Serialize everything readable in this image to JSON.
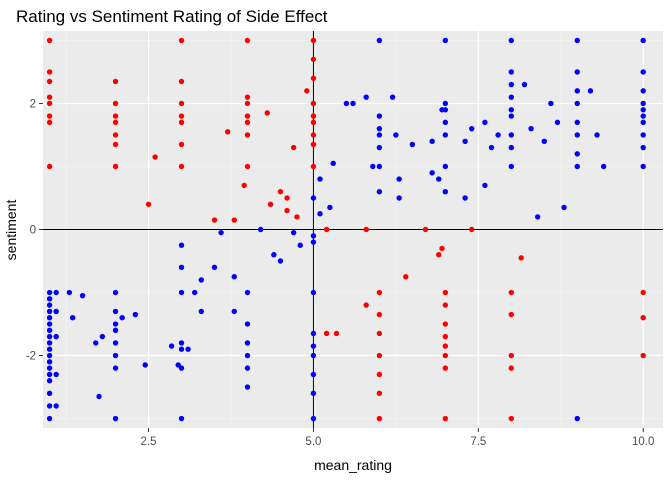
{
  "chart_data": {
    "type": "scatter",
    "title": "Rating vs Sentiment Rating of Side Effect",
    "xlabel": "mean_rating",
    "ylabel": "sentiment",
    "xlim": [
      0.9,
      10.3
    ],
    "ylim": [
      -3.15,
      3.15
    ],
    "x_ticks": [
      2.5,
      5.0,
      7.5,
      10.0
    ],
    "x_tick_labels": [
      "2.5",
      "5.0",
      "7.5",
      "10.0"
    ],
    "y_ticks": [
      -2,
      0,
      2
    ],
    "y_tick_labels": [
      "-2",
      "0",
      "2"
    ],
    "reference_lines": {
      "x": 5,
      "y": 0
    },
    "grid": true,
    "legend": "none",
    "colors": {
      "panel": "#ebebeb",
      "grid_major": "#ffffff",
      "grid_minor": "#f5f5f5",
      "reference_line": "#000000",
      "series_red": "#ff0000",
      "series_blue": "#0000ff"
    },
    "series": [
      {
        "color": "#ff0000",
        "points": [
          [
            1,
            3
          ],
          [
            1,
            2.5
          ],
          [
            1,
            2.35
          ],
          [
            1,
            2.1
          ],
          [
            1,
            2.0
          ],
          [
            1,
            1.8
          ],
          [
            1,
            1.7
          ],
          [
            1,
            1.0
          ],
          [
            2,
            2.35
          ],
          [
            2,
            2.0
          ],
          [
            2,
            1.8
          ],
          [
            2,
            1.7
          ],
          [
            2,
            1.5
          ],
          [
            2,
            1.35
          ],
          [
            2,
            1.0
          ],
          [
            2.6,
            1.15
          ],
          [
            2.5,
            0.4
          ],
          [
            3,
            3
          ],
          [
            3,
            2.35
          ],
          [
            3,
            2.0
          ],
          [
            3,
            1.8
          ],
          [
            3,
            1.7
          ],
          [
            3,
            1.35
          ],
          [
            3,
            1.0
          ],
          [
            3.5,
            0.15
          ],
          [
            3.7,
            1.55
          ],
          [
            3.8,
            0.15
          ],
          [
            3.95,
            0.7
          ],
          [
            4,
            3
          ],
          [
            4,
            2.1
          ],
          [
            4,
            2.0
          ],
          [
            4,
            1.8
          ],
          [
            4,
            1.7
          ],
          [
            4,
            1.5
          ],
          [
            4,
            1.0
          ],
          [
            4.3,
            1.85
          ],
          [
            4.35,
            0.4
          ],
          [
            4.5,
            0.6
          ],
          [
            4.6,
            0.5
          ],
          [
            4.6,
            0.3
          ],
          [
            4.7,
            1.3
          ],
          [
            4.75,
            0.2
          ],
          [
            4.9,
            2.2
          ],
          [
            5,
            3
          ],
          [
            5,
            2.7
          ],
          [
            5,
            2.4
          ],
          [
            5,
            2.0
          ],
          [
            5,
            1.8
          ],
          [
            5,
            1.7
          ],
          [
            5,
            1.5
          ],
          [
            5,
            1.35
          ],
          [
            5,
            1.0
          ],
          [
            5.2,
            -1.65
          ],
          [
            5.35,
            -1.65
          ],
          [
            5.2,
            0
          ],
          [
            5.8,
            0
          ],
          [
            5.8,
            -1.2
          ],
          [
            6,
            -1.35
          ],
          [
            6,
            -1.0
          ],
          [
            6,
            -1.65
          ],
          [
            6,
            -2.0
          ],
          [
            6,
            -2.3
          ],
          [
            6,
            -2.6
          ],
          [
            6,
            -3.0
          ],
          [
            6.4,
            -0.75
          ],
          [
            6.7,
            0
          ],
          [
            6.9,
            -0.4
          ],
          [
            6.95,
            -0.3
          ],
          [
            7,
            -1.0
          ],
          [
            7,
            -1.2
          ],
          [
            7,
            -1.5
          ],
          [
            7,
            -1.7
          ],
          [
            7,
            -1.85
          ],
          [
            7,
            -2.0
          ],
          [
            7,
            -2.2
          ],
          [
            7,
            -3.0
          ],
          [
            7.4,
            0
          ],
          [
            8,
            -1.0
          ],
          [
            8,
            -1.35
          ],
          [
            8,
            -2.0
          ],
          [
            8,
            -2.2
          ],
          [
            8,
            -3.0
          ],
          [
            8.15,
            -0.45
          ],
          [
            10,
            -1.0
          ],
          [
            10,
            -1.4
          ],
          [
            10,
            -2.0
          ]
        ]
      },
      {
        "color": "#0000ff",
        "points": [
          [
            1,
            -1.0
          ],
          [
            1,
            -1.1
          ],
          [
            1,
            -1.2
          ],
          [
            1,
            -1.3
          ],
          [
            1,
            -1.4
          ],
          [
            1,
            -1.5
          ],
          [
            1,
            -1.6
          ],
          [
            1,
            -1.7
          ],
          [
            1,
            -1.8
          ],
          [
            1,
            -1.9
          ],
          [
            1,
            -2.0
          ],
          [
            1,
            -2.1
          ],
          [
            1,
            -2.2
          ],
          [
            1,
            -2.3
          ],
          [
            1,
            -2.4
          ],
          [
            1,
            -2.6
          ],
          [
            1,
            -2.8
          ],
          [
            1,
            -3.0
          ],
          [
            1.1,
            -1.0
          ],
          [
            1.1,
            -1.3
          ],
          [
            1.1,
            -1.7
          ],
          [
            1.1,
            -2.3
          ],
          [
            1.1,
            -2.8
          ],
          [
            1.3,
            -1.0
          ],
          [
            1.35,
            -1.4
          ],
          [
            1.5,
            -1.05
          ],
          [
            1.7,
            -1.8
          ],
          [
            1.8,
            -1.7
          ],
          [
            1.75,
            -2.65
          ],
          [
            2,
            -1.0
          ],
          [
            2,
            -1.3
          ],
          [
            2,
            -1.5
          ],
          [
            2,
            -1.6
          ],
          [
            2,
            -1.8
          ],
          [
            2,
            -2.0
          ],
          [
            2,
            -2.2
          ],
          [
            2,
            -3.0
          ],
          [
            2.1,
            -1.4
          ],
          [
            2.3,
            -1.35
          ],
          [
            2.45,
            -2.15
          ],
          [
            2.85,
            -1.85
          ],
          [
            2.95,
            -2.15
          ],
          [
            3,
            -0.25
          ],
          [
            3,
            -0.6
          ],
          [
            3,
            -1.0
          ],
          [
            3,
            -1.8
          ],
          [
            3,
            -1.9
          ],
          [
            3,
            -2.2
          ],
          [
            3,
            -3.0
          ],
          [
            3.1,
            -1.9
          ],
          [
            3.2,
            -1.0
          ],
          [
            3.3,
            -1.3
          ],
          [
            3.3,
            -0.8
          ],
          [
            3.5,
            -0.6
          ],
          [
            3.6,
            -0.05
          ],
          [
            3.8,
            -0.75
          ],
          [
            3.8,
            -1.3
          ],
          [
            4,
            -1.0
          ],
          [
            4,
            -1.5
          ],
          [
            4,
            -1.8
          ],
          [
            4,
            -2.0
          ],
          [
            4,
            -2.2
          ],
          [
            4,
            -2.5
          ],
          [
            4.2,
            0
          ],
          [
            4.4,
            -0.4
          ],
          [
            4.5,
            -0.5
          ],
          [
            4.7,
            -0.05
          ],
          [
            4.8,
            -0.25
          ],
          [
            5,
            -0.1
          ],
          [
            5,
            -0.2
          ],
          [
            5,
            -1.0
          ],
          [
            5,
            -1.65
          ],
          [
            5,
            -1.85
          ],
          [
            5,
            -2.0
          ],
          [
            5,
            -2.3
          ],
          [
            5,
            -2.6
          ],
          [
            5,
            -3.0
          ],
          [
            5,
            0.5
          ],
          [
            5.1,
            0.8
          ],
          [
            5.1,
            0.25
          ],
          [
            5.25,
            0.35
          ],
          [
            5.3,
            1.05
          ],
          [
            5.5,
            2.0
          ],
          [
            5.6,
            2.0
          ],
          [
            5.8,
            2.1
          ],
          [
            5.9,
            1.0
          ],
          [
            6,
            1.5
          ],
          [
            6,
            1.3
          ],
          [
            6,
            1.0
          ],
          [
            6,
            0.6
          ],
          [
            6,
            3.0
          ],
          [
            6,
            1.8
          ],
          [
            6,
            1.6
          ],
          [
            6.2,
            2.1
          ],
          [
            6.25,
            1.5
          ],
          [
            6.3,
            0.5
          ],
          [
            6.3,
            0.8
          ],
          [
            6.5,
            1.35
          ],
          [
            6.8,
            1.4
          ],
          [
            6.8,
            0.9
          ],
          [
            6.9,
            0.8
          ],
          [
            6.95,
            1.9
          ],
          [
            7,
            3
          ],
          [
            7,
            2.0
          ],
          [
            7,
            1.9
          ],
          [
            7,
            1.7
          ],
          [
            7,
            1.5
          ],
          [
            7,
            1.0
          ],
          [
            7,
            0.6
          ],
          [
            7.3,
            1.4
          ],
          [
            7.3,
            0.5
          ],
          [
            7.4,
            1.6
          ],
          [
            7.6,
            1.7
          ],
          [
            7.6,
            0.7
          ],
          [
            7.7,
            1.3
          ],
          [
            7.8,
            1.5
          ],
          [
            8,
            3
          ],
          [
            8,
            2.5
          ],
          [
            8,
            2.3
          ],
          [
            8,
            2.1
          ],
          [
            8,
            1.9
          ],
          [
            8,
            1.8
          ],
          [
            8,
            1.5
          ],
          [
            8,
            1.3
          ],
          [
            8,
            1.0
          ],
          [
            8.2,
            2.3
          ],
          [
            8.3,
            1.6
          ],
          [
            8.4,
            0.2
          ],
          [
            8.5,
            1.4
          ],
          [
            8.6,
            2.0
          ],
          [
            8.7,
            1.7
          ],
          [
            8.8,
            0.35
          ],
          [
            9,
            3
          ],
          [
            9,
            2.5
          ],
          [
            9,
            2.2
          ],
          [
            9,
            2.0
          ],
          [
            9,
            1.7
          ],
          [
            9,
            1.5
          ],
          [
            9,
            1.2
          ],
          [
            9,
            1.0
          ],
          [
            9.2,
            2.2
          ],
          [
            9.3,
            1.5
          ],
          [
            9.4,
            1.0
          ],
          [
            10,
            3
          ],
          [
            10,
            2.5
          ],
          [
            10,
            2.2
          ],
          [
            10,
            2.0
          ],
          [
            10,
            1.9
          ],
          [
            10,
            1.8
          ],
          [
            10,
            1.7
          ],
          [
            10,
            1.5
          ],
          [
            10,
            1.3
          ],
          [
            10,
            1.0
          ],
          [
            9,
            -3.0
          ]
        ]
      }
    ]
  }
}
